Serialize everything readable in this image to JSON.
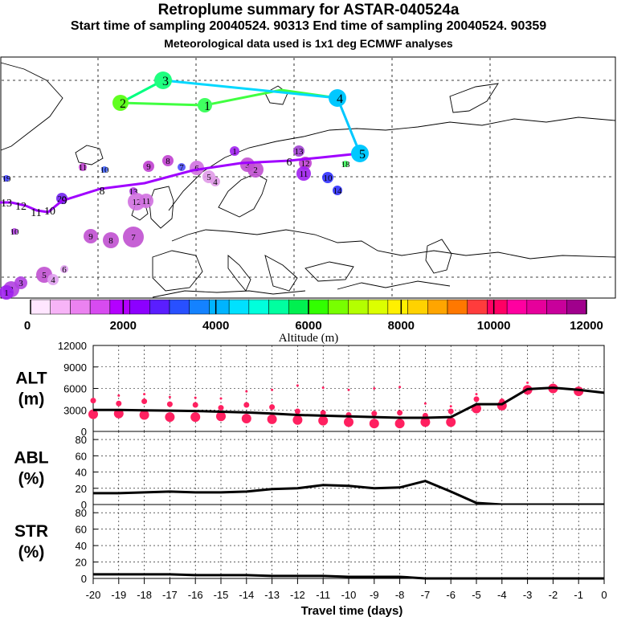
{
  "titles": {
    "main": "Retroplume summary for ASTAR-040524a",
    "sub": "Start time of sampling 20040524. 90313     End time of sampling 20040524. 90359",
    "met": "Meteorological data used is 1x1 deg ECMWF analyses"
  },
  "colorbar": {
    "title": "Altitude (m)",
    "tick_labels": [
      "0",
      "2000",
      "4000",
      "6000",
      "8000",
      "10000",
      "12000"
    ],
    "colors": [
      "#ffe6ff",
      "#f7b4f7",
      "#eb82f0",
      "#d74bf0",
      "#b400ff",
      "#8c00ff",
      "#5a1eff",
      "#2850ff",
      "#1482ff",
      "#00b4ff",
      "#00e1ff",
      "#00ffdc",
      "#00ffa0",
      "#00f050",
      "#32ff00",
      "#78ff00",
      "#b4ff00",
      "#dcff00",
      "#fff000",
      "#ffd200",
      "#ffa500",
      "#ff7800",
      "#ff3c3c",
      "#ff0064",
      "#ff00a0",
      "#e6009b",
      "#c8009b",
      "#a0008c"
    ]
  },
  "chart_data": [
    {
      "type": "map-trajectory",
      "title": "Retroplume summary for ASTAR-040524a",
      "colorscale": "Altitude (m)",
      "main_track": {
        "labels": [
          "20",
          "19",
          "18",
          "17",
          "16",
          "15",
          "14",
          "13",
          "12",
          "11",
          "10",
          "9",
          "8",
          "7",
          "6",
          "5",
          "4",
          "3",
          "2",
          "1"
        ],
        "color": "#a000ff"
      },
      "upper_track": {
        "labels": [
          "4",
          "3",
          "2",
          "1",
          "5"
        ],
        "colors": [
          "#00c8ff",
          "#00ffa0",
          "#50ff00",
          "#40ff60",
          "#00c8ff"
        ]
      },
      "cluster_labels": [
        "11",
        "10",
        "9",
        "8",
        "7",
        "6",
        "5",
        "4",
        "3",
        "2",
        "1",
        "13",
        "12",
        "11",
        "10",
        "14",
        "13",
        "12",
        "11",
        "10",
        "9",
        "8",
        "7",
        "6",
        "5",
        "4",
        "3",
        "2",
        "1",
        "20",
        "19",
        "18"
      ]
    },
    {
      "type": "line",
      "panel": "ALT",
      "ylabel": "ALT\n(m)",
      "ylim": [
        0,
        12000
      ],
      "yticks": [
        "0",
        "3000",
        "6000",
        "9000",
        "12000"
      ],
      "x": [
        -20,
        -19,
        -18,
        -17,
        -16,
        -15,
        -14,
        -13,
        -12,
        -11,
        -10,
        -9,
        -8,
        -7,
        -6,
        -5,
        -4,
        -3,
        -2,
        -1,
        0
      ],
      "values": [
        3000,
        3000,
        2950,
        2900,
        2850,
        2750,
        2650,
        2500,
        2300,
        2200,
        2100,
        2000,
        1900,
        1900,
        2000,
        3800,
        3800,
        5900,
        6100,
        5800,
        5400
      ],
      "markers": {
        "color": "#ff2060",
        "points": [
          {
            "x": -20,
            "y": 2400
          },
          {
            "x": -19,
            "y": 2500
          },
          {
            "x": -18,
            "y": 2300
          },
          {
            "x": -17,
            "y": 2000
          },
          {
            "x": -16,
            "y": 2000
          },
          {
            "x": -15,
            "y": 2100
          },
          {
            "x": -14,
            "y": 1800
          },
          {
            "x": -13,
            "y": 1700
          },
          {
            "x": -12,
            "y": 1600
          },
          {
            "x": -11,
            "y": 1500
          },
          {
            "x": -10,
            "y": 1300
          },
          {
            "x": -9,
            "y": 1100
          },
          {
            "x": -8,
            "y": 1100
          },
          {
            "x": -7,
            "y": 1300
          },
          {
            "x": -6,
            "y": 1300
          },
          {
            "x": -5,
            "y": 3200
          },
          {
            "x": -4,
            "y": 3600
          },
          {
            "x": -3,
            "y": 5800
          },
          {
            "x": -2,
            "y": 6000
          },
          {
            "x": -1,
            "y": 5600
          },
          {
            "x": -20,
            "y": 4300
          },
          {
            "x": -19,
            "y": 3900
          },
          {
            "x": -18,
            "y": 4200
          },
          {
            "x": -17,
            "y": 3800
          },
          {
            "x": -16,
            "y": 3700
          },
          {
            "x": -15,
            "y": 3300
          },
          {
            "x": -14,
            "y": 3700
          },
          {
            "x": -13,
            "y": 3400
          },
          {
            "x": -12,
            "y": 2800
          },
          {
            "x": -11,
            "y": 2600
          },
          {
            "x": -10,
            "y": 2300
          },
          {
            "x": -9,
            "y": 2500
          },
          {
            "x": -8,
            "y": 2600
          },
          {
            "x": -7,
            "y": 2200
          },
          {
            "x": -6,
            "y": 2800
          },
          {
            "x": -5,
            "y": 4500
          },
          {
            "x": -4,
            "y": 4200
          },
          {
            "x": -19,
            "y": 5000
          },
          {
            "x": -18,
            "y": 5200
          },
          {
            "x": -17,
            "y": 4800
          },
          {
            "x": -16,
            "y": 4700
          },
          {
            "x": -15,
            "y": 4600
          },
          {
            "x": -14,
            "y": 5600
          },
          {
            "x": -13,
            "y": 5800
          },
          {
            "x": -12,
            "y": 6400
          },
          {
            "x": -11,
            "y": 6100
          },
          {
            "x": -10,
            "y": 5800
          },
          {
            "x": -9,
            "y": 6000
          },
          {
            "x": -8,
            "y": 6200
          },
          {
            "x": -7,
            "y": 3900
          },
          {
            "x": -6,
            "y": 3500
          },
          {
            "x": -5,
            "y": 5200
          },
          {
            "x": -3,
            "y": 6800
          }
        ]
      }
    },
    {
      "type": "line",
      "panel": "ABL",
      "ylabel": "ABL\n(%)",
      "ylim": [
        0,
        90
      ],
      "yticks": [
        "0",
        "20",
        "40",
        "60",
        "80"
      ],
      "x": [
        -20,
        -19,
        -18,
        -17,
        -16,
        -15,
        -14,
        -13,
        -12,
        -11,
        -10,
        -9,
        -8,
        -7,
        -6,
        -5,
        -4,
        -3,
        -2,
        -1,
        0
      ],
      "values": [
        14,
        14,
        15,
        16,
        15,
        15,
        16,
        19,
        20,
        24,
        23,
        20,
        21,
        29,
        16,
        2,
        0,
        0,
        0,
        0,
        0
      ]
    },
    {
      "type": "line",
      "panel": "STR",
      "ylabel": "STR\n(%)",
      "ylim": [
        0,
        90
      ],
      "yticks": [
        "0",
        "20",
        "40",
        "60",
        "80"
      ],
      "x": [
        -20,
        -19,
        -18,
        -17,
        -16,
        -15,
        -14,
        -13,
        -12,
        -11,
        -10,
        -9,
        -8,
        -7,
        -6,
        -5,
        -4,
        -3,
        -2,
        -1,
        0
      ],
      "values": [
        5,
        5,
        5,
        5,
        4,
        4,
        4,
        3,
        3,
        3,
        2,
        2,
        2,
        0,
        0,
        0,
        0,
        0,
        0,
        0,
        0
      ]
    }
  ],
  "x_axis": {
    "label": "Travel time (days)",
    "tick_labels": [
      "-20",
      "-19",
      "-18",
      "-17",
      "-16",
      "-15",
      "-14",
      "-13",
      "-12",
      "-11",
      "-10",
      "-9",
      "-8",
      "-7",
      "-6",
      "-5",
      "-4",
      "-3",
      "-2",
      "-1",
      "0"
    ]
  }
}
